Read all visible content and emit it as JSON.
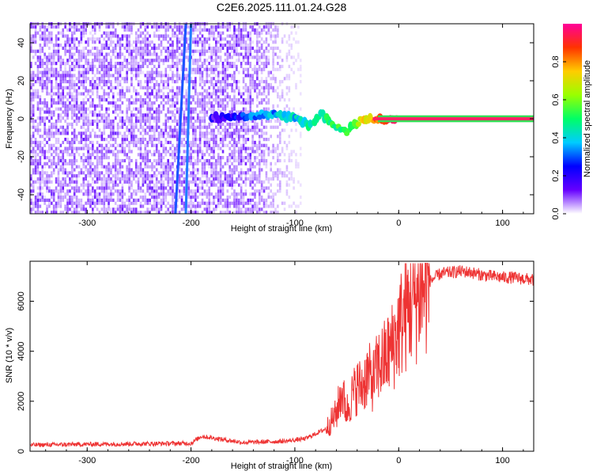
{
  "figure": {
    "title": "C2E6.2025.111.01.24.G28"
  },
  "chart_data": [
    {
      "type": "heatmap",
      "title": "C2E6.2025.111.01.24.G28",
      "xlabel": "Height of straight line (km)",
      "ylabel": "Frequency (Hz)",
      "xlim": [
        -355,
        130
      ],
      "ylim": [
        -50,
        50
      ],
      "x_ticks": [
        -300,
        -200,
        -100,
        0,
        100
      ],
      "y_ticks": [
        -40,
        -20,
        0,
        20,
        40
      ],
      "grid": false,
      "colorbar": {
        "label": "Normalized spectral amplitude",
        "range": [
          0,
          1
        ],
        "ticks": [
          0.0,
          0.2,
          0.4,
          0.6,
          0.8
        ],
        "colors": [
          "#ffffff",
          "#6600ff",
          "#0000ff",
          "#00ccff",
          "#00ff66",
          "#99ff00",
          "#ffcc00",
          "#ff3300",
          "#ff0099"
        ]
      },
      "features": {
        "noise_region_x": [
          -355,
          -95
        ],
        "sweep_line_1_x": [
          -215,
          -205
        ],
        "sweep_line_2_x": [
          -205,
          -200
        ],
        "signal_track": [
          {
            "x": -180,
            "y": 1,
            "amp": 0.15
          },
          {
            "x": -160,
            "y": 1,
            "amp": 0.2
          },
          {
            "x": -140,
            "y": 2,
            "amp": 0.3
          },
          {
            "x": -120,
            "y": 2,
            "amp": 0.35
          },
          {
            "x": -100,
            "y": 0,
            "amp": 0.4
          },
          {
            "x": -85,
            "y": -3,
            "amp": 0.45
          },
          {
            "x": -75,
            "y": 3,
            "amp": 0.45
          },
          {
            "x": -60,
            "y": -5,
            "amp": 0.5
          },
          {
            "x": -50,
            "y": -7,
            "amp": 0.5
          },
          {
            "x": -35,
            "y": 0,
            "amp": 0.7
          },
          {
            "x": -20,
            "y": 0,
            "amp": 0.85
          },
          {
            "x": 0,
            "y": 0,
            "amp": 0.95
          },
          {
            "x": 130,
            "y": 0,
            "amp": 0.95
          }
        ]
      }
    },
    {
      "type": "line",
      "xlabel": "Height of straight line (km)",
      "ylabel": "SNR (10 * v/v)",
      "xlim": [
        -355,
        130
      ],
      "ylim": [
        0,
        7600
      ],
      "x_ticks": [
        -300,
        -200,
        -100,
        0,
        100
      ],
      "y_ticks": [
        0,
        2000,
        4000,
        6000
      ],
      "grid": false,
      "series": [
        {
          "color": "#ee3333",
          "x": [
            -355,
            -300,
            -250,
            -200,
            -190,
            -150,
            -110,
            -90,
            -70,
            -60,
            -55,
            -50,
            -45,
            -40,
            -35,
            -30,
            -25,
            -20,
            -15,
            -10,
            -5,
            0,
            5,
            10,
            20,
            30,
            40,
            50,
            60,
            70,
            80,
            90,
            100,
            110,
            120,
            130
          ],
          "y": [
            250,
            280,
            300,
            320,
            600,
            350,
            400,
            500,
            900,
            1500,
            2400,
            1600,
            2200,
            2600,
            2600,
            3100,
            2800,
            3400,
            3600,
            3900,
            4300,
            4900,
            5400,
            5800,
            6400,
            6800,
            7100,
            7150,
            7200,
            7150,
            7050,
            7000,
            6950,
            6950,
            6900,
            6850
          ]
        }
      ]
    }
  ]
}
